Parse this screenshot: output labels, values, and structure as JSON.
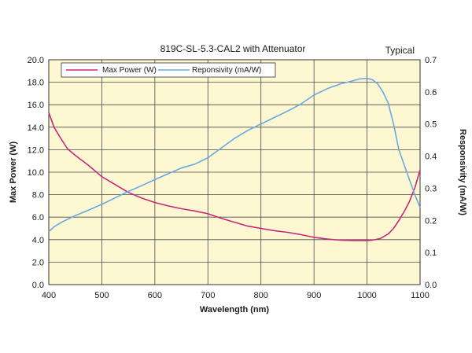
{
  "chart_data": {
    "type": "line",
    "title": "819C-SL-5.3-CAL2 with Attenuator",
    "annotation": "Typical",
    "xlabel": "Wavelength (nm)",
    "ylabel": "Max Power (W)",
    "y2label": "Responsivity  (mA/W)",
    "xlim": [
      400,
      1100
    ],
    "ylim": [
      0,
      20
    ],
    "y2lim": [
      0,
      0.7
    ],
    "x_ticks": [
      "400",
      "500",
      "600",
      "700",
      "800",
      "900",
      "1000",
      "1100"
    ],
    "y_ticks": [
      "0.0",
      "2.0",
      "4.0",
      "6.0",
      "8.0",
      "10.0",
      "12.0",
      "14.0",
      "16.0",
      "18.0",
      "20.0"
    ],
    "y2_ticks": [
      "0.0",
      "0.1",
      "0.2",
      "0.3",
      "0.4",
      "0.5",
      "0.6",
      "0.7"
    ],
    "grid": true,
    "legend_position": "top-left",
    "background_color": "#fdf8d2",
    "series": [
      {
        "name": "Max Power (W)",
        "axis": "left",
        "color": "#c8287a",
        "x": [
          400,
          410,
          420,
          435,
          450,
          475,
          500,
          525,
          550,
          575,
          600,
          625,
          650,
          675,
          700,
          725,
          750,
          775,
          800,
          825,
          850,
          875,
          900,
          925,
          950,
          975,
          1000,
          1010,
          1025,
          1040,
          1050,
          1060,
          1070,
          1080,
          1090,
          1100
        ],
        "y": [
          15.3,
          14.0,
          13.2,
          12.1,
          11.5,
          10.6,
          9.6,
          8.9,
          8.2,
          7.7,
          7.3,
          7.0,
          6.75,
          6.55,
          6.3,
          5.9,
          5.55,
          5.2,
          5.0,
          4.8,
          4.65,
          4.45,
          4.2,
          4.05,
          3.95,
          3.92,
          3.92,
          3.95,
          4.1,
          4.5,
          5.0,
          5.7,
          6.5,
          7.4,
          8.6,
          10.2
        ]
      },
      {
        "name": "Reponsivity (mA/W)",
        "axis": "right",
        "color": "#6aa8e0",
        "x": [
          400,
          410,
          425,
          450,
          475,
          500,
          525,
          550,
          575,
          600,
          625,
          650,
          675,
          700,
          725,
          750,
          775,
          800,
          825,
          850,
          875,
          900,
          925,
          950,
          970,
          985,
          1000,
          1010,
          1020,
          1030,
          1040,
          1050,
          1060,
          1075,
          1090,
          1100
        ],
        "y": [
          0.165,
          0.18,
          0.195,
          0.215,
          0.232,
          0.25,
          0.27,
          0.29,
          0.308,
          0.327,
          0.345,
          0.363,
          0.375,
          0.395,
          0.425,
          0.455,
          0.48,
          0.5,
          0.52,
          0.54,
          0.562,
          0.59,
          0.61,
          0.625,
          0.633,
          0.64,
          0.642,
          0.638,
          0.625,
          0.6,
          0.565,
          0.5,
          0.42,
          0.35,
          0.28,
          0.24
        ]
      }
    ]
  }
}
